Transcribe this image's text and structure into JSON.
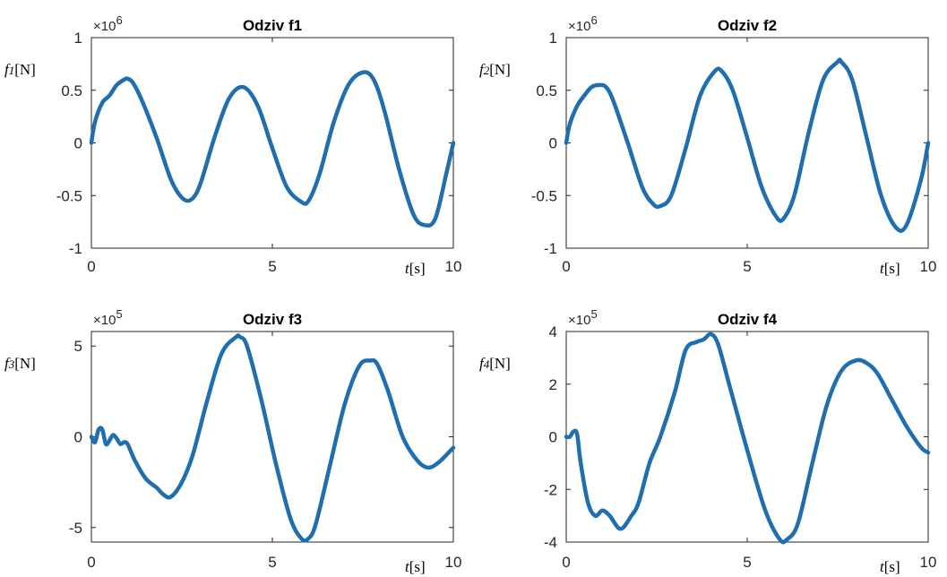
{
  "chart_data": [
    {
      "type": "line",
      "title": "Odziv f1",
      "ylabel_sym": "f",
      "ylabel_sub": "1",
      "ylabel_unit": "[N]",
      "xlabel_sym": "t",
      "xlabel_unit": "[s]",
      "exponent_base": "×10",
      "exponent_power": "6",
      "xlim": [
        0,
        10
      ],
      "ylim": [
        -1,
        1
      ],
      "xticks": [
        "0",
        "5",
        "10"
      ],
      "yticks": [
        "1",
        "0.5",
        "0",
        "-0.5",
        "-1"
      ],
      "ytick_values": [
        1,
        0.5,
        0,
        -0.5,
        -1
      ],
      "color": "#1f6fb0",
      "series": [
        {
          "x": [
            0,
            0.1,
            0.3,
            0.5,
            0.7,
            0.9,
            1.0,
            1.15,
            1.4,
            1.8,
            2.2,
            2.5,
            2.75,
            3.0,
            3.4,
            3.8,
            4.2,
            4.6,
            5.0,
            5.4,
            5.8,
            6.0,
            6.3,
            6.7,
            7.1,
            7.5,
            7.8,
            8.1,
            8.5,
            8.9,
            9.2,
            9.5,
            9.8,
            10.0
          ],
          "y": [
            0,
            0.2,
            0.38,
            0.45,
            0.55,
            0.6,
            0.61,
            0.57,
            0.4,
            0.05,
            -0.35,
            -0.52,
            -0.54,
            -0.4,
            0.05,
            0.42,
            0.53,
            0.35,
            -0.05,
            -0.42,
            -0.56,
            -0.55,
            -0.3,
            0.2,
            0.55,
            0.67,
            0.6,
            0.3,
            -0.25,
            -0.68,
            -0.78,
            -0.72,
            -0.3,
            0
          ]
        }
      ]
    },
    {
      "type": "line",
      "title": "Odziv f2",
      "ylabel_sym": "f",
      "ylabel_sub": "2",
      "ylabel_unit": "[N]",
      "xlabel_sym": "t",
      "xlabel_unit": "[s]",
      "exponent_base": "×10",
      "exponent_power": "6",
      "xlim": [
        0,
        10
      ],
      "ylim": [
        -1,
        1
      ],
      "xticks": [
        "0",
        "5",
        "10"
      ],
      "yticks": [
        "1",
        "0.5",
        "0",
        "-0.5",
        "-1"
      ],
      "ytick_values": [
        1,
        0.5,
        0,
        -0.5,
        -1
      ],
      "color": "#1f6fb0",
      "series": [
        {
          "x": [
            0,
            0.1,
            0.3,
            0.5,
            0.7,
            0.9,
            1.1,
            1.3,
            1.7,
            2.1,
            2.4,
            2.6,
            2.9,
            3.3,
            3.7,
            4.1,
            4.3,
            4.6,
            5.0,
            5.4,
            5.8,
            6.0,
            6.3,
            6.7,
            7.1,
            7.5,
            7.6,
            7.9,
            8.3,
            8.7,
            9.1,
            9.4,
            9.8,
            10.0
          ],
          "y": [
            0,
            0.18,
            0.35,
            0.45,
            0.53,
            0.55,
            0.53,
            0.4,
            0.0,
            -0.42,
            -0.58,
            -0.6,
            -0.5,
            -0.05,
            0.45,
            0.68,
            0.68,
            0.5,
            0.05,
            -0.42,
            -0.7,
            -0.72,
            -0.5,
            0.1,
            0.6,
            0.77,
            0.77,
            0.6,
            0.05,
            -0.5,
            -0.8,
            -0.78,
            -0.35,
            0
          ]
        }
      ]
    },
    {
      "type": "line",
      "title": "Odziv f3",
      "ylabel_sym": "f",
      "ylabel_sub": "3",
      "ylabel_unit": "[N]",
      "xlabel_sym": "t",
      "xlabel_unit": "[s]",
      "exponent_base": "×10",
      "exponent_power": "5",
      "xlim": [
        0,
        10
      ],
      "ylim": [
        -5.8,
        5.8
      ],
      "xticks": [
        "0",
        "5",
        "10"
      ],
      "yticks": [
        "5",
        "0",
        "-5"
      ],
      "ytick_values": [
        5,
        0,
        -5
      ],
      "color": "#1f6fb0",
      "series": [
        {
          "x": [
            0,
            0.1,
            0.2,
            0.3,
            0.4,
            0.5,
            0.6,
            0.7,
            0.8,
            0.9,
            1.0,
            1.2,
            1.5,
            1.8,
            2.0,
            2.2,
            2.5,
            2.8,
            3.2,
            3.6,
            4.0,
            4.1,
            4.3,
            4.7,
            5.1,
            5.5,
            5.8,
            6.0,
            6.2,
            6.6,
            7.0,
            7.4,
            7.7,
            7.9,
            8.2,
            8.6,
            9.0,
            9.3,
            9.6,
            10.0
          ],
          "y": [
            0,
            -0.3,
            0.4,
            0.4,
            -0.4,
            -0.2,
            0.1,
            -0.1,
            -0.4,
            -0.3,
            -0.4,
            -1.3,
            -2.3,
            -2.8,
            -3.2,
            -3.3,
            -2.5,
            -1.0,
            2.0,
            4.6,
            5.5,
            5.5,
            5.0,
            2.0,
            -1.5,
            -4.5,
            -5.6,
            -5.6,
            -4.8,
            -1.5,
            1.8,
            3.9,
            4.2,
            4.0,
            2.5,
            0.0,
            -1.3,
            -1.7,
            -1.4,
            -0.6
          ]
        }
      ]
    },
    {
      "type": "line",
      "title": "Odziv f4",
      "ylabel_sym": "f",
      "ylabel_sub": "4",
      "ylabel_unit": "[N]",
      "xlabel_sym": "t",
      "xlabel_unit": "[s]",
      "exponent_base": "×10",
      "exponent_power": "5",
      "xlim": [
        0,
        10
      ],
      "ylim": [
        -4,
        4
      ],
      "xticks": [
        "0",
        "5",
        "10"
      ],
      "yticks": [
        "4",
        "2",
        "0",
        "-2",
        "-4"
      ],
      "ytick_values": [
        4,
        2,
        0,
        -2,
        -4
      ],
      "color": "#1f6fb0",
      "series": [
        {
          "x": [
            0,
            0.1,
            0.2,
            0.3,
            0.4,
            0.6,
            0.8,
            1.0,
            1.2,
            1.5,
            1.8,
            2.0,
            2.3,
            2.6,
            3.0,
            3.3,
            3.6,
            3.8,
            4.0,
            4.2,
            4.5,
            5.0,
            5.5,
            5.9,
            6.1,
            6.4,
            6.8,
            7.2,
            7.6,
            8.0,
            8.3,
            8.6,
            9.0,
            9.4,
            9.8,
            10.0
          ],
          "y": [
            0,
            0,
            0.2,
            0.1,
            -1.0,
            -2.5,
            -3.0,
            -2.8,
            -3.0,
            -3.5,
            -3.0,
            -2.5,
            -1.0,
            0.0,
            1.7,
            3.3,
            3.6,
            3.7,
            3.9,
            3.5,
            2.0,
            -0.5,
            -2.8,
            -3.9,
            -3.9,
            -3.3,
            -1.0,
            1.2,
            2.5,
            2.9,
            2.8,
            2.4,
            1.4,
            0.4,
            -0.4,
            -0.6
          ]
        }
      ]
    }
  ]
}
